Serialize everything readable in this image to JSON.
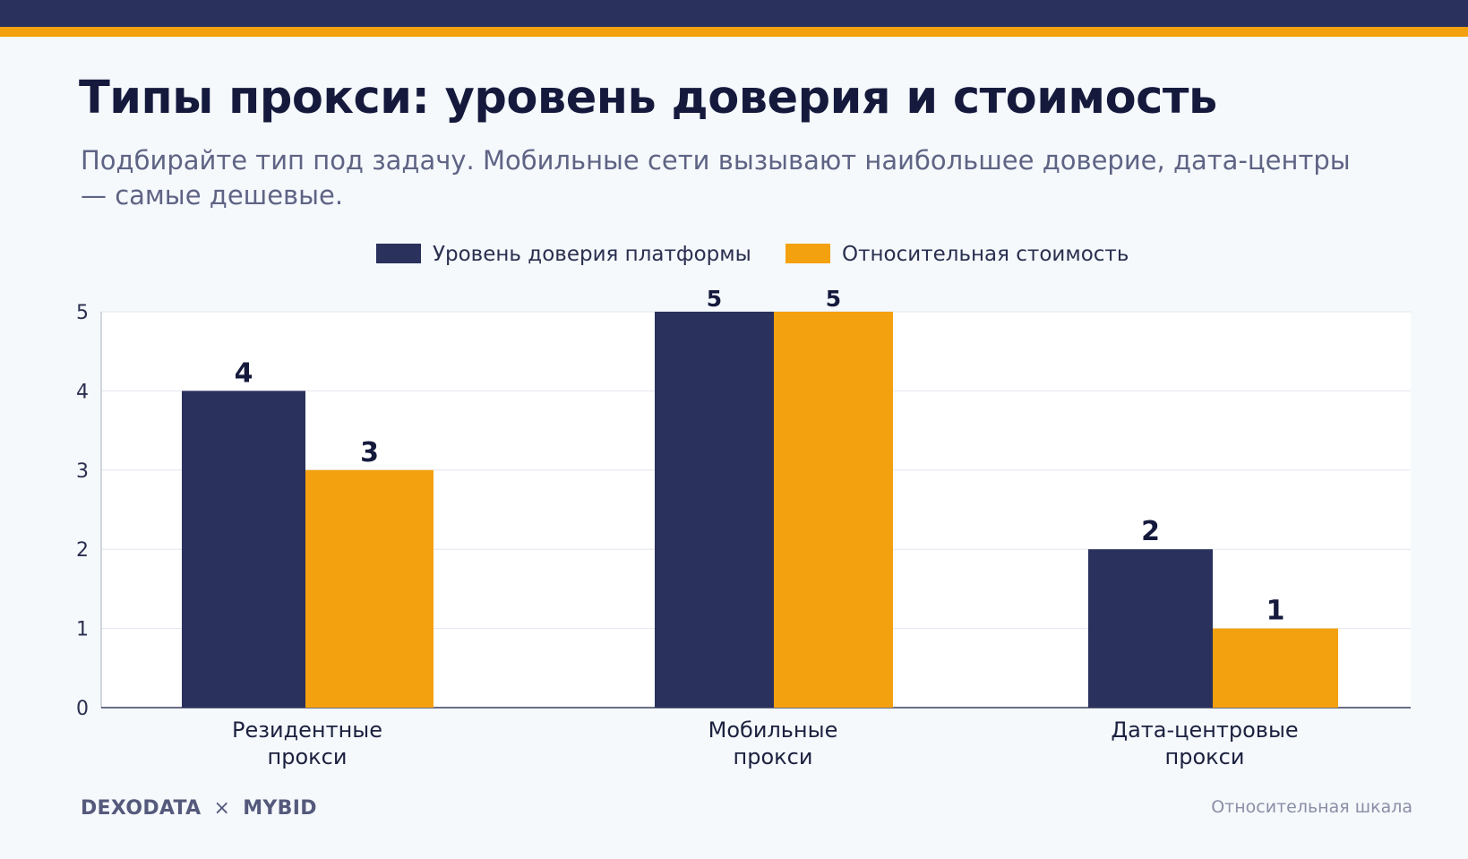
{
  "header": {
    "title": "Типы прокси: уровень доверия и стоимость",
    "subtitle": "Подбирайте тип под задачу. Мобильные сети вызывают наибольшее доверие, дата-центры — самые дешевые."
  },
  "colors": {
    "background": "#f5f9fc",
    "top_bar": "#2a315c",
    "accent_bar": "#f4a10f",
    "series_trust": "#2a315c",
    "series_cost": "#f4a10f"
  },
  "chart_data": {
    "type": "bar",
    "categories": [
      [
        "Резидентные",
        "прокси"
      ],
      [
        "Мобильные",
        "прокси"
      ],
      [
        "Дата-центровые",
        "прокси"
      ]
    ],
    "series": [
      {
        "name": "Уровень доверия платформы",
        "values": [
          4,
          5,
          2
        ],
        "color": "#2a315c"
      },
      {
        "name": "Относительная стоимость",
        "values": [
          3,
          5,
          1
        ],
        "color": "#f4a10f"
      }
    ],
    "ylim": [
      0,
      5
    ],
    "yticks": [
      0,
      1,
      2,
      3,
      4,
      5
    ],
    "grid": true,
    "legend_position": "top-center",
    "data_labels": true
  },
  "footer": {
    "brand_left": "DEXODATA",
    "brand_sep": "×",
    "brand_right": "MYBID",
    "note": "Относительная шкала"
  }
}
